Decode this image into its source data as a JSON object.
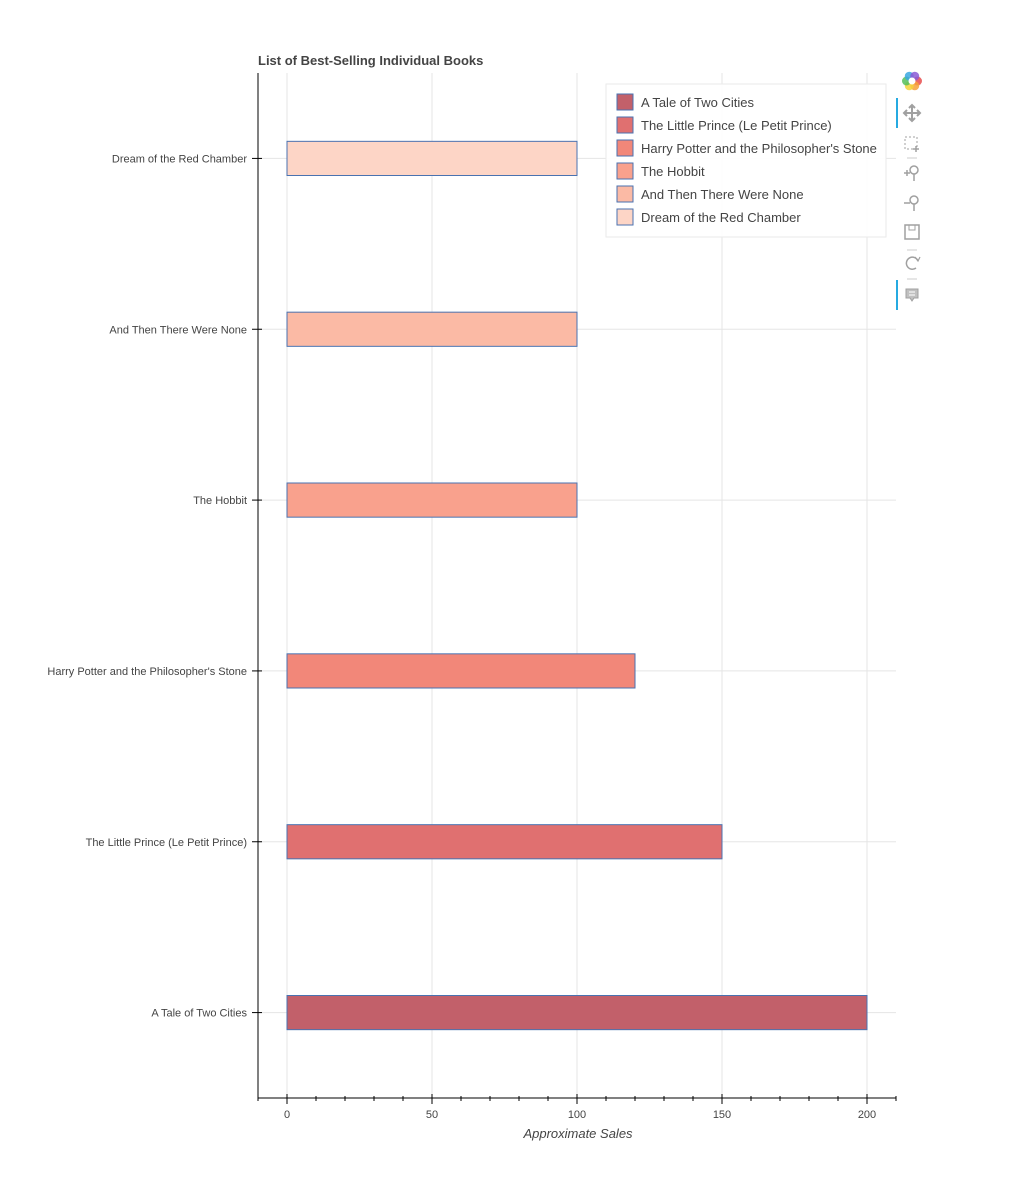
{
  "chart_data": {
    "type": "bar",
    "orientation": "horizontal",
    "title": "List of Best-Selling Individual Books",
    "xlabel": "Approximate Sales",
    "ylabel": "",
    "categories": [
      "A Tale of Two Cities",
      "The Little Prince (Le Petit Prince)",
      "Harry Potter and the Philosopher's Stone",
      "The Hobbit",
      "And Then There Were None",
      "Dream of the Red Chamber"
    ],
    "values": [
      200,
      150,
      120,
      100,
      100,
      100
    ],
    "colors": [
      "#c2606a",
      "#e07070",
      "#f28779",
      "#f9a18d",
      "#fbbaa5",
      "#fdd5c6"
    ],
    "bar_outline_color": "#4a72b0",
    "xlim": [
      -10,
      210
    ],
    "xticks": [
      0,
      50,
      100,
      150,
      200
    ],
    "grid": true,
    "legend": {
      "placement": "top-right",
      "entries": [
        "A Tale of Two Cities",
        "The Little Prince (Le Petit Prince)",
        "Harry Potter and the Philosopher's Stone",
        "The Hobbit",
        "And Then There Were None",
        "Dream of the Red Chamber"
      ]
    }
  },
  "toolbar": {
    "items": [
      "bokeh-logo-icon",
      "pan-icon",
      "box-zoom-icon",
      "zoom-in-icon",
      "zoom-out-icon",
      "save-icon",
      "reset-icon",
      "hover-icon"
    ],
    "accent_color": "#26aae1"
  }
}
